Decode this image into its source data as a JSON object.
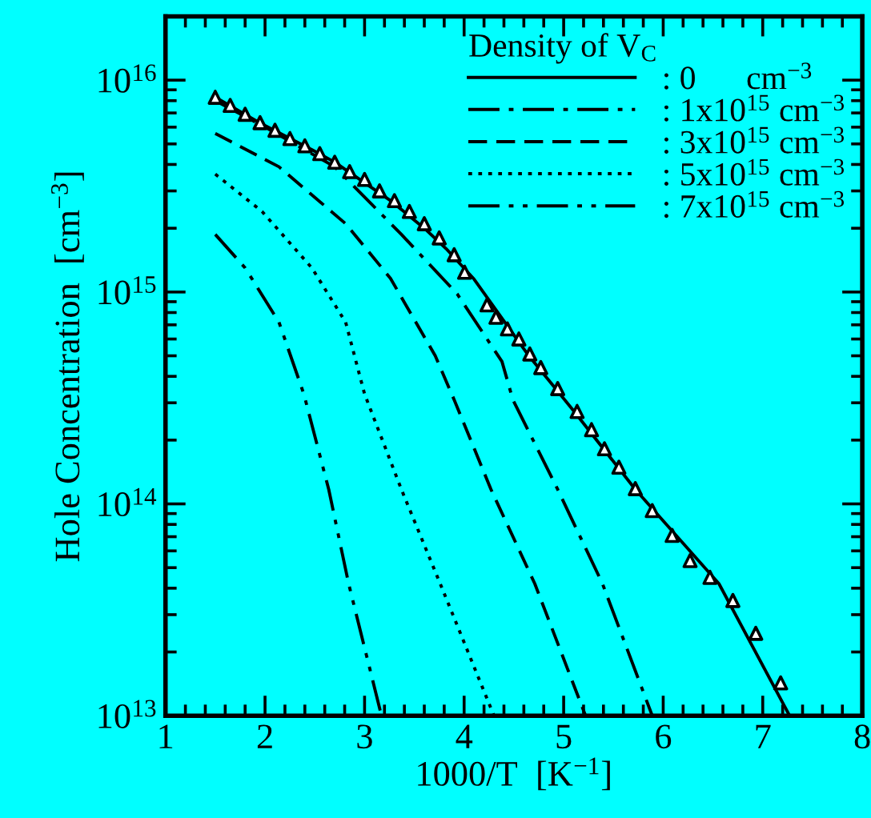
{
  "chart_data": {
    "type": "line",
    "xlabel": "1000/T  [K$^{−1}$]",
    "ylabel": "Hole Concentration  [cm$^{−3}$]",
    "legend_title": "Density of V$_{C}$",
    "legend": "top right",
    "log": "y",
    "grid": false,
    "xlim": [
      1,
      8
    ],
    "xticks": [
      1,
      2,
      3,
      4,
      5,
      6,
      7,
      8
    ],
    "ylim": [
      10000000000000.0,
      2e+16
    ],
    "yticks": [
      {
        "value": 10000000000000.0,
        "label": "10$^{13}$"
      },
      {
        "value": 100000000000000.0,
        "label": "10$^{14}$"
      },
      {
        "value": 1000000000000000.0,
        "label": "10$^{15}$"
      },
      {
        "value": 1e+16,
        "label": "10$^{16}$"
      }
    ],
    "series": [
      {
        "name": ": 0      cm$^{−3}$",
        "color": "#000000",
        "line_style": "solid",
        "x": [
          1.5,
          1.97,
          2.47,
          2.7,
          3.26,
          3.6,
          3.82,
          4.1,
          4.65,
          5.1,
          5.72,
          6.56,
          7.27
        ],
        "values": [
          8300000000000000.0,
          6200000000000000.0,
          4700000000000000.0,
          4100000000000000.0,
          2700000000000000.0,
          2000000000000000.0,
          1600000000000000.0,
          1150000000000000.0,
          500000000000000.0,
          275000000000000.0,
          117000000000000.0,
          42000000000000.0,
          10000000000000.0
        ]
      },
      {
        "name": ": 1x10$^{15}$ cm$^{−3}$",
        "color": "#000000",
        "line_style": "dashdot",
        "x": [
          1.5,
          2.0,
          2.7,
          3.37,
          3.93,
          4.38,
          4.49,
          4.94,
          5.39,
          5.89
        ],
        "values": [
          8000000000000000.0,
          6000000000000000.0,
          3900000000000000.0,
          1870000000000000.0,
          980000000000000.0,
          470000000000000.0,
          310000000000000.0,
          117000000000000.0,
          42000000000000.0,
          10000000000000.0
        ]
      },
      {
        "name": ": 3x10$^{15}$ cm$^{−3}$",
        "color": "#000000",
        "line_style": "dashed",
        "x": [
          1.5,
          2.14,
          2.81,
          3.26,
          3.71,
          3.9,
          4.27,
          4.71,
          5.22
        ],
        "values": [
          5600000000000000.0,
          3900000000000000.0,
          2100000000000000.0,
          1160000000000000.0,
          500000000000000.0,
          310000000000000.0,
          117000000000000.0,
          42000000000000.0,
          10000000000000.0
        ]
      },
      {
        "name": ": 5x10$^{15}$ cm$^{−3}$",
        "color": "#000000",
        "line_style": "dotted",
        "x": [
          1.5,
          1.97,
          2.47,
          2.81,
          3.0,
          3.37,
          3.76,
          4.3
        ],
        "values": [
          3600000000000000.0,
          2400000000000000.0,
          1300000000000000.0,
          720000000000000.0,
          330000000000000.0,
          117000000000000.0,
          42000000000000.0,
          10000000000000.0
        ]
      },
      {
        "name": ": 7x10$^{15}$ cm$^{−3}$",
        "color": "#000000",
        "line_style": "dashdotdot",
        "x": [
          1.5,
          1.8,
          2.14,
          2.39,
          2.64,
          2.84,
          3.17
        ],
        "values": [
          1870000000000000.0,
          1300000000000000.0,
          720000000000000.0,
          330000000000000.0,
          117000000000000.0,
          42000000000000.0,
          10000000000000.0
        ]
      },
      {
        "type": "scatter",
        "marker": "triangle",
        "color": "#000000",
        "x": [
          1.5,
          1.65,
          1.8,
          1.95,
          2.1,
          2.25,
          2.4,
          2.55,
          2.7,
          2.85,
          3.0,
          3.15,
          3.3,
          3.45,
          3.6,
          3.75,
          3.9,
          4.005,
          4.23,
          4.32,
          4.435,
          4.55,
          4.66,
          4.77,
          4.94,
          5.135,
          5.28,
          5.41,
          5.555,
          5.72,
          5.89,
          6.09,
          6.27,
          6.47,
          6.7,
          6.93,
          7.18
        ],
        "values": [
          8300000000000000.0,
          7600000000000000.0,
          6900000000000000.0,
          6300000000000000.0,
          5800000000000000.0,
          5300000000000000.0,
          4900000000000000.0,
          4500000000000000.0,
          4100000000000000.0,
          3700000000000000.0,
          3400000000000000.0,
          3000000000000000.0,
          2700000000000000.0,
          2400000000000000.0,
          2100000000000000.0,
          1800000000000000.0,
          1500000000000000.0,
          1240000000000000.0,
          870000000000000.0,
          760000000000000.0,
          670000000000000.0,
          600000000000000.0,
          510000000000000.0,
          440000000000000.0,
          350000000000000.0,
          273000000000000.0,
          224000000000000.0,
          182000000000000.0,
          149000000000000.0,
          118000000000000.0,
          93000000000000.0,
          71000000000000.0,
          54000000000000.0,
          45000000000000.0,
          35000000000000.0,
          24500000000000.0,
          14300000000000.0
        ]
      }
    ]
  }
}
